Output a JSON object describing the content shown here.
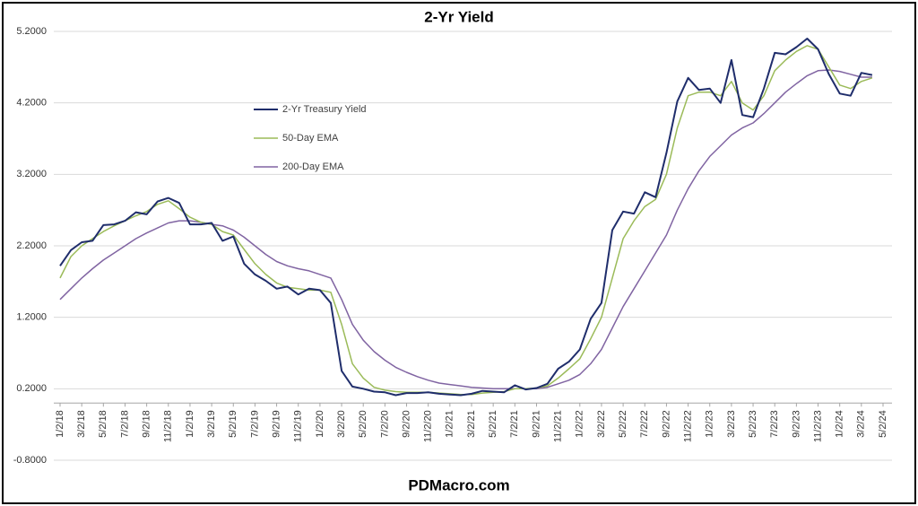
{
  "chart_data": {
    "type": "line",
    "title": "2-Yr Yield",
    "footer": "PDMacro.com",
    "x": [
      "1/2/18",
      "2/2/18",
      "3/2/18",
      "4/2/18",
      "5/2/18",
      "6/2/18",
      "7/2/18",
      "8/2/18",
      "9/2/18",
      "10/2/18",
      "11/2/18",
      "12/2/18",
      "1/2/19",
      "2/2/19",
      "3/2/19",
      "4/2/19",
      "5/2/19",
      "6/2/19",
      "7/2/19",
      "8/2/19",
      "9/2/19",
      "10/2/19",
      "11/2/19",
      "12/2/19",
      "1/2/20",
      "2/2/20",
      "3/2/20",
      "4/2/20",
      "5/2/20",
      "6/2/20",
      "7/2/20",
      "8/2/20",
      "9/2/20",
      "10/2/20",
      "11/2/20",
      "12/2/20",
      "1/2/21",
      "2/2/21",
      "3/2/21",
      "4/2/21",
      "5/2/21",
      "6/2/21",
      "7/2/21",
      "8/2/21",
      "9/2/21",
      "10/2/21",
      "11/2/21",
      "12/2/21",
      "1/2/22",
      "2/2/22",
      "3/2/22",
      "4/2/22",
      "5/2/22",
      "6/2/22",
      "7/2/22",
      "8/2/22",
      "9/2/22",
      "10/2/22",
      "11/2/22",
      "12/2/22",
      "1/2/23",
      "2/2/23",
      "3/2/23",
      "4/2/23",
      "5/2/23",
      "6/2/23",
      "7/2/23",
      "8/2/23",
      "9/2/23",
      "10/2/23",
      "11/2/23",
      "12/2/23",
      "1/2/24",
      "2/2/24",
      "3/2/24",
      "4/2/24",
      "5/2/24"
    ],
    "xticks": [
      "1/2/18",
      "3/2/18",
      "5/2/18",
      "7/2/18",
      "9/2/18",
      "11/2/18",
      "1/2/19",
      "3/2/19",
      "5/2/19",
      "7/2/19",
      "9/2/19",
      "11/2/19",
      "1/2/20",
      "3/2/20",
      "5/2/20",
      "7/2/20",
      "9/2/20",
      "11/2/20",
      "1/2/21",
      "3/2/21",
      "5/2/21",
      "7/2/21",
      "9/2/21",
      "11/2/21",
      "1/2/22",
      "3/2/22",
      "5/2/22",
      "7/2/22",
      "9/2/22",
      "11/2/22",
      "1/2/23",
      "3/2/23",
      "5/2/23",
      "7/2/23",
      "9/2/23",
      "11/2/23",
      "1/2/24",
      "3/2/24",
      "5/2/24"
    ],
    "series": [
      {
        "name": "2-Yr Treasury Yield",
        "color": "#1f2d6b",
        "width": 2,
        "values": [
          1.92,
          2.14,
          2.25,
          2.27,
          2.49,
          2.5,
          2.55,
          2.67,
          2.64,
          2.82,
          2.87,
          2.8,
          2.5,
          2.5,
          2.52,
          2.27,
          2.33,
          1.95,
          1.8,
          1.71,
          1.6,
          1.63,
          1.52,
          1.6,
          1.58,
          1.4,
          0.45,
          0.23,
          0.2,
          0.16,
          0.15,
          0.11,
          0.14,
          0.14,
          0.15,
          0.13,
          0.12,
          0.11,
          0.13,
          0.17,
          0.16,
          0.15,
          0.25,
          0.19,
          0.21,
          0.27,
          0.48,
          0.58,
          0.75,
          1.18,
          1.4,
          2.42,
          2.68,
          2.65,
          2.95,
          2.88,
          3.5,
          4.22,
          4.55,
          4.38,
          4.4,
          4.2,
          4.8,
          4.03,
          4.0,
          4.4,
          4.9,
          4.88,
          4.98,
          5.1,
          4.95,
          4.6,
          4.33,
          4.3,
          4.62,
          4.59,
          null
        ]
      },
      {
        "name": "50-Day EMA",
        "color": "#9bbb59",
        "width": 1.5,
        "values": [
          1.75,
          2.05,
          2.2,
          2.3,
          2.4,
          2.48,
          2.55,
          2.62,
          2.68,
          2.78,
          2.83,
          2.72,
          2.6,
          2.53,
          2.5,
          2.4,
          2.35,
          2.15,
          1.95,
          1.8,
          1.68,
          1.62,
          1.6,
          1.58,
          1.58,
          1.55,
          1.1,
          0.55,
          0.35,
          0.22,
          0.18,
          0.16,
          0.15,
          0.15,
          0.15,
          0.14,
          0.13,
          0.12,
          0.12,
          0.14,
          0.15,
          0.16,
          0.2,
          0.2,
          0.21,
          0.24,
          0.35,
          0.48,
          0.62,
          0.9,
          1.2,
          1.75,
          2.3,
          2.55,
          2.75,
          2.85,
          3.2,
          3.85,
          4.3,
          4.35,
          4.35,
          4.3,
          4.5,
          4.2,
          4.1,
          4.3,
          4.65,
          4.8,
          4.92,
          5.0,
          4.95,
          4.7,
          4.45,
          4.4,
          4.5,
          4.55,
          null
        ]
      },
      {
        "name": "200-Day EMA",
        "color": "#8064a2",
        "width": 1.5,
        "values": [
          1.45,
          1.6,
          1.75,
          1.88,
          2.0,
          2.1,
          2.2,
          2.3,
          2.38,
          2.45,
          2.52,
          2.55,
          2.55,
          2.53,
          2.5,
          2.48,
          2.42,
          2.32,
          2.2,
          2.08,
          1.98,
          1.92,
          1.88,
          1.85,
          1.8,
          1.75,
          1.45,
          1.1,
          0.88,
          0.72,
          0.6,
          0.5,
          0.43,
          0.37,
          0.32,
          0.28,
          0.26,
          0.24,
          0.22,
          0.21,
          0.2,
          0.2,
          0.2,
          0.2,
          0.2,
          0.22,
          0.27,
          0.32,
          0.4,
          0.55,
          0.75,
          1.05,
          1.35,
          1.6,
          1.85,
          2.1,
          2.35,
          2.7,
          3.0,
          3.25,
          3.45,
          3.6,
          3.75,
          3.85,
          3.92,
          4.05,
          4.2,
          4.35,
          4.47,
          4.58,
          4.65,
          4.66,
          4.64,
          4.6,
          4.56,
          4.56,
          null
        ]
      }
    ],
    "ylim": [
      -0.8,
      5.2
    ],
    "yticks": [
      {
        "value": -0.8,
        "label": "-0.8000"
      },
      {
        "value": 0.2,
        "label": "0.2000"
      },
      {
        "value": 1.2,
        "label": "1.2000"
      },
      {
        "value": 2.2,
        "label": "2.2000"
      },
      {
        "value": 3.2,
        "label": "3.2000"
      },
      {
        "value": 4.2,
        "label": "4.2000"
      },
      {
        "value": 5.2,
        "label": "5.2000"
      }
    ],
    "grid": true
  }
}
